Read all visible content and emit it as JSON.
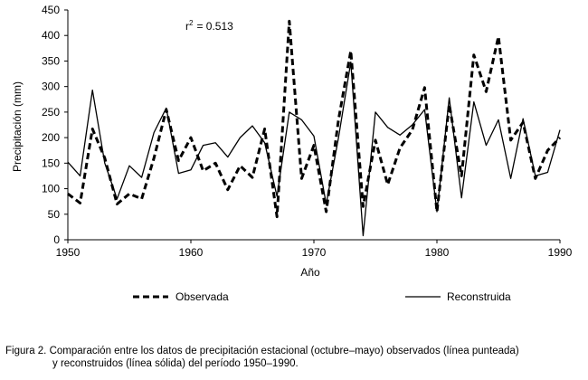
{
  "chart_data": {
    "type": "line",
    "xlabel": "Año",
    "ylabel": "Precipitación (mm)",
    "xlim": [
      1950,
      1990
    ],
    "ylim": [
      0,
      450
    ],
    "xticks": [
      1950,
      1960,
      1970,
      1980,
      1990
    ],
    "yticks": [
      0,
      50,
      100,
      150,
      200,
      250,
      300,
      350,
      400,
      450
    ],
    "annotation": {
      "r_label": "r",
      "r_exp": "2",
      "r_value": "=  0.513"
    },
    "legend_position": "bottom",
    "x": [
      1950,
      1951,
      1952,
      1953,
      1954,
      1955,
      1956,
      1957,
      1958,
      1959,
      1960,
      1961,
      1962,
      1963,
      1964,
      1965,
      1966,
      1967,
      1968,
      1969,
      1970,
      1971,
      1972,
      1973,
      1974,
      1975,
      1976,
      1977,
      1978,
      1979,
      1980,
      1981,
      1982,
      1983,
      1984,
      1985,
      1986,
      1987,
      1988,
      1989,
      1990
    ],
    "series": [
      {
        "name": "Observada",
        "style": "dashed",
        "values": [
          90,
          72,
          217,
          160,
          70,
          90,
          80,
          160,
          255,
          155,
          200,
          135,
          150,
          98,
          145,
          122,
          217,
          45,
          428,
          120,
          185,
          55,
          235,
          370,
          65,
          195,
          108,
          180,
          215,
          298,
          55,
          265,
          125,
          362,
          290,
          398,
          195,
          230,
          120,
          175,
          200
        ]
      },
      {
        "name": "Reconstruida",
        "style": "solid",
        "values": [
          152,
          125,
          293,
          150,
          80,
          145,
          122,
          210,
          258,
          130,
          137,
          185,
          190,
          162,
          200,
          223,
          190,
          85,
          250,
          235,
          203,
          70,
          200,
          348,
          8,
          250,
          220,
          205,
          225,
          255,
          55,
          278,
          82,
          270,
          185,
          235,
          120,
          237,
          125,
          132,
          215
        ]
      }
    ]
  },
  "caption": {
    "line1": "Figura 2. Comparación entre los datos de precipitación estacional (octubre–mayo) observados (línea punteada)",
    "line2": "y reconstruidos (línea sólida) del período 1950–1990."
  }
}
